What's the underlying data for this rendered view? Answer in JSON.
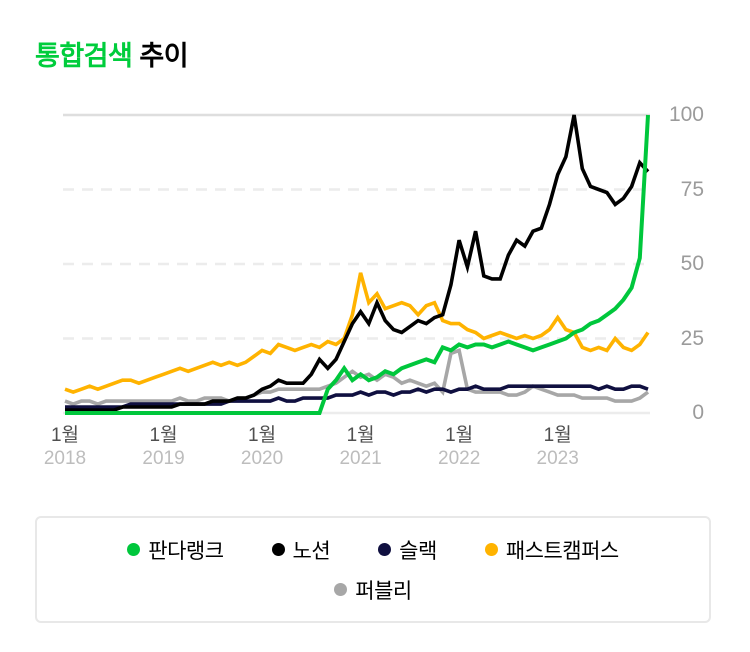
{
  "title": {
    "highlight": "통합검색",
    "rest": "추이"
  },
  "chart_data": {
    "type": "line",
    "title": "통합검색 추이",
    "x_start": "2018-01",
    "x_interval": "monthly",
    "n_points": 72,
    "xticks": [
      {
        "month": "1월",
        "year": "2018"
      },
      {
        "month": "1월",
        "year": "2019"
      },
      {
        "month": "1월",
        "year": "2020"
      },
      {
        "month": "1월",
        "year": "2021"
      },
      {
        "month": "1월",
        "year": "2022"
      },
      {
        "month": "1월",
        "year": "2023"
      }
    ],
    "yticks": [
      0,
      25,
      50,
      75,
      100
    ],
    "ylim": [
      0,
      100
    ],
    "grid": "horizontal; solid at 0 and 100, dashed at 25/50/75",
    "legend_position": "bottom boxed",
    "series": [
      {
        "name": "판다랭크",
        "color": "#00c73c",
        "values": [
          0,
          0,
          0,
          0,
          0,
          0,
          0,
          0,
          0,
          0,
          0,
          0,
          0,
          0,
          0,
          0,
          0,
          0,
          0,
          0,
          0,
          0,
          0,
          0,
          0,
          0,
          0,
          0,
          0,
          0,
          0,
          0,
          8,
          11,
          15,
          11,
          13,
          11,
          12,
          14,
          13,
          15,
          16,
          17,
          18,
          17,
          22,
          21,
          23,
          22,
          23,
          23,
          22,
          23,
          24,
          23,
          22,
          21,
          22,
          23,
          24,
          25,
          27,
          28,
          30,
          31,
          33,
          35,
          38,
          42,
          52,
          100
        ]
      },
      {
        "name": "노션",
        "color": "#000000",
        "values": [
          1,
          1,
          1,
          1,
          1,
          1,
          1,
          2,
          2,
          2,
          2,
          2,
          2,
          2,
          3,
          3,
          3,
          3,
          4,
          4,
          4,
          5,
          5,
          6,
          8,
          9,
          11,
          10,
          10,
          10,
          13,
          18,
          15,
          18,
          24,
          30,
          34,
          30,
          37,
          31,
          28,
          27,
          29,
          31,
          30,
          32,
          33,
          43,
          58,
          49,
          61,
          46,
          45,
          45,
          53,
          58,
          56,
          61,
          62,
          70,
          80,
          86,
          100,
          82,
          76,
          75,
          74,
          70,
          72,
          76,
          84,
          81
        ]
      },
      {
        "name": "슬랙",
        "color": "#101040",
        "values": [
          2,
          2,
          2,
          2,
          2,
          2,
          2,
          2,
          3,
          3,
          3,
          3,
          3,
          3,
          3,
          3,
          3,
          3,
          3,
          3,
          4,
          4,
          4,
          4,
          4,
          4,
          5,
          4,
          4,
          5,
          5,
          5,
          5,
          6,
          6,
          6,
          7,
          6,
          7,
          7,
          6,
          7,
          7,
          8,
          7,
          8,
          8,
          7,
          8,
          8,
          9,
          8,
          8,
          8,
          9,
          9,
          9,
          9,
          9,
          9,
          9,
          9,
          9,
          9,
          9,
          8,
          9,
          8,
          8,
          9,
          9,
          8
        ]
      },
      {
        "name": "패스트캠퍼스",
        "color": "#ffb300",
        "values": [
          8,
          7,
          8,
          9,
          8,
          9,
          10,
          11,
          11,
          10,
          11,
          12,
          13,
          14,
          15,
          14,
          15,
          16,
          17,
          16,
          17,
          16,
          17,
          19,
          21,
          20,
          23,
          22,
          21,
          22,
          23,
          22,
          24,
          23,
          25,
          33,
          47,
          37,
          40,
          35,
          36,
          37,
          36,
          33,
          36,
          37,
          31,
          30,
          30,
          28,
          27,
          25,
          26,
          27,
          26,
          25,
          26,
          25,
          26,
          28,
          32,
          28,
          27,
          22,
          21,
          22,
          21,
          25,
          22,
          21,
          23,
          27
        ]
      },
      {
        "name": "퍼블리",
        "color": "#a7a7a7",
        "values": [
          4,
          3,
          4,
          4,
          3,
          4,
          4,
          4,
          4,
          4,
          4,
          4,
          4,
          4,
          5,
          4,
          4,
          5,
          5,
          5,
          4,
          5,
          5,
          6,
          7,
          7,
          8,
          8,
          8,
          8,
          8,
          8,
          9,
          10,
          12,
          14,
          12,
          13,
          11,
          13,
          12,
          10,
          11,
          10,
          9,
          10,
          7,
          20,
          21,
          8,
          7,
          7,
          7,
          7,
          6,
          6,
          7,
          9,
          8,
          7,
          6,
          6,
          6,
          5,
          5,
          5,
          5,
          4,
          4,
          4,
          5,
          7
        ]
      }
    ]
  },
  "legend": {
    "rows": [
      [
        "판다랭크",
        "노션",
        "슬랙",
        "패스트캠퍼스"
      ],
      [
        "퍼블리"
      ]
    ]
  }
}
